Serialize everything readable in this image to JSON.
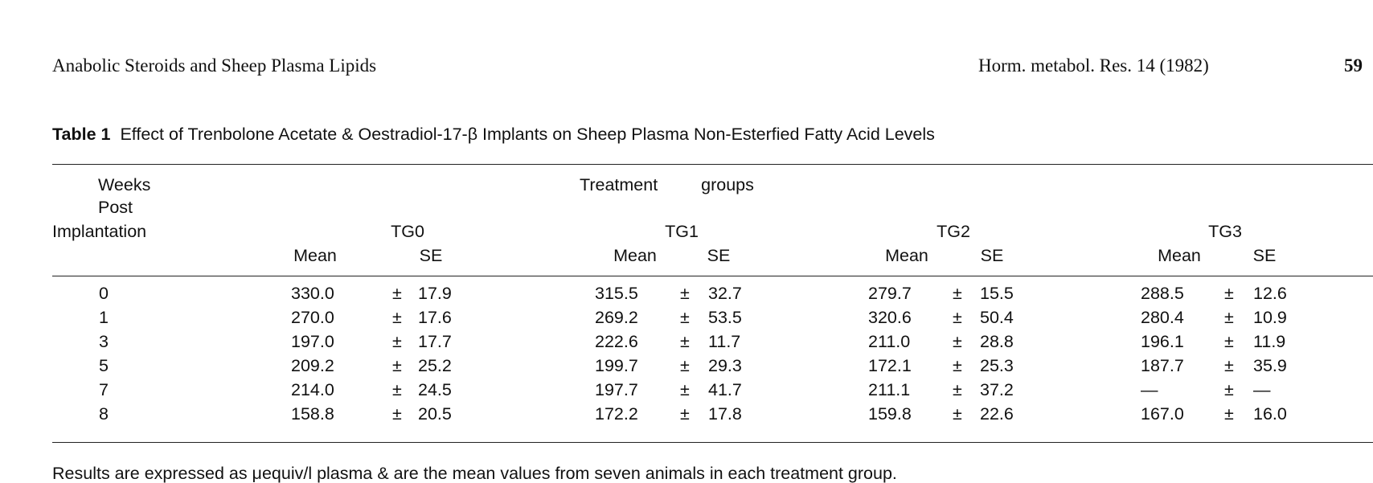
{
  "header": {
    "running_title": "Anabolic Steroids and Sheep Plasma Lipids",
    "journal": "Horm. metabol. Res. 14 (1982)",
    "page_number": "59"
  },
  "table": {
    "caption": {
      "label": "Table 1",
      "text": "Effect of Trenbolone Acetate & Oestradiol-17-β Implants on Sheep Plasma Non-Esterfied Fatty Acid Levels"
    },
    "row_header": [
      "Weeks",
      "Post",
      "Implantation"
    ],
    "spanning_header": "Treatment groups",
    "groups": [
      "TG0",
      "TG1",
      "TG2",
      "TG3"
    ],
    "subheaders": [
      "Mean",
      "SE"
    ],
    "rows": [
      {
        "week": "0",
        "groups": [
          [
            "330.0",
            "±",
            "17.9"
          ],
          [
            "315.5",
            "±",
            "32.7"
          ],
          [
            "279.7",
            "±",
            "15.5"
          ],
          [
            "288.5",
            "±",
            "12.6"
          ]
        ]
      },
      {
        "week": "1",
        "groups": [
          [
            "270.0",
            "±",
            "17.6"
          ],
          [
            "269.2",
            "±",
            "53.5"
          ],
          [
            "320.6",
            "±",
            "50.4"
          ],
          [
            "280.4",
            "±",
            "10.9"
          ]
        ]
      },
      {
        "week": "3",
        "groups": [
          [
            "197.0",
            "±",
            "17.7"
          ],
          [
            "222.6",
            "±",
            "11.7"
          ],
          [
            "211.0",
            "±",
            "28.8"
          ],
          [
            "196.1",
            "±",
            "11.9"
          ]
        ]
      },
      {
        "week": "5",
        "groups": [
          [
            "209.2",
            "±",
            "25.2"
          ],
          [
            "199.7",
            "±",
            "29.3"
          ],
          [
            "172.1",
            "±",
            "25.3"
          ],
          [
            "187.7",
            "±",
            "35.9"
          ]
        ]
      },
      {
        "week": "7",
        "groups": [
          [
            "214.0",
            "±",
            "24.5"
          ],
          [
            "197.7",
            "±",
            "41.7"
          ],
          [
            "211.1",
            "±",
            "37.2"
          ],
          [
            "—",
            "±",
            "—"
          ]
        ]
      },
      {
        "week": "8",
        "groups": [
          [
            "158.8",
            "±",
            "20.5"
          ],
          [
            "172.2",
            "±",
            "17.8"
          ],
          [
            "159.8",
            "±",
            "22.6"
          ],
          [
            "167.0",
            "±",
            "16.0"
          ]
        ]
      }
    ],
    "footnote": "Results are expressed as μequiv/l plasma & are the mean values from seven animals in each treatment group."
  }
}
